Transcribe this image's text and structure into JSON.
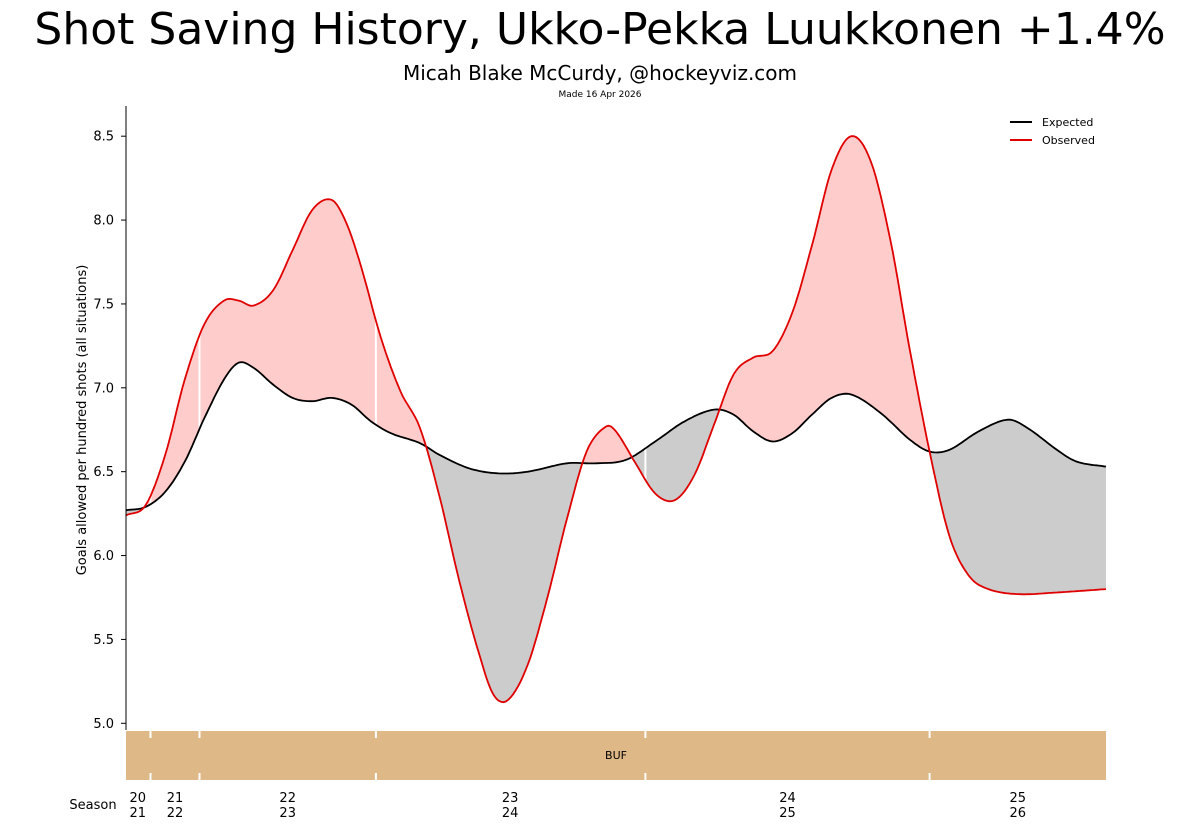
{
  "header": {
    "title": "Shot Saving History, Ukko-Pekka Luukkonen +1.4%",
    "subtitle": "Micah Blake McCurdy, @hockeyviz.com",
    "made": "Made 16 Apr 2026"
  },
  "colors": {
    "expected": "#000000",
    "observed": "#e00000",
    "above_fill": "#ffcccc",
    "below_fill": "#cccccc",
    "team_band": "#deb887"
  },
  "chart_data": {
    "type": "line",
    "ylabel": "Goals allowed per hundred shots (all situations)",
    "ylim": [
      4.96,
      8.68
    ],
    "yticks": [
      "5.0",
      "5.5",
      "6.0",
      "6.5",
      "7.0",
      "7.5",
      "8.0",
      "8.5"
    ],
    "xlim": [
      0,
      1
    ],
    "legend_position": "top-right",
    "series": [
      {
        "name": "Expected",
        "points": [
          [
            0.0,
            6.27
          ],
          [
            0.02,
            6.29
          ],
          [
            0.04,
            6.38
          ],
          [
            0.06,
            6.56
          ],
          [
            0.08,
            6.82
          ],
          [
            0.1,
            7.05
          ],
          [
            0.115,
            7.15
          ],
          [
            0.13,
            7.12
          ],
          [
            0.15,
            7.02
          ],
          [
            0.17,
            6.94
          ],
          [
            0.19,
            6.92
          ],
          [
            0.21,
            6.94
          ],
          [
            0.23,
            6.9
          ],
          [
            0.25,
            6.8
          ],
          [
            0.27,
            6.73
          ],
          [
            0.3,
            6.67
          ],
          [
            0.32,
            6.6
          ],
          [
            0.35,
            6.52
          ],
          [
            0.38,
            6.49
          ],
          [
            0.41,
            6.5
          ],
          [
            0.45,
            6.55
          ],
          [
            0.48,
            6.55
          ],
          [
            0.51,
            6.57
          ],
          [
            0.54,
            6.68
          ],
          [
            0.57,
            6.8
          ],
          [
            0.6,
            6.87
          ],
          [
            0.62,
            6.84
          ],
          [
            0.64,
            6.74
          ],
          [
            0.66,
            6.68
          ],
          [
            0.68,
            6.73
          ],
          [
            0.7,
            6.84
          ],
          [
            0.72,
            6.94
          ],
          [
            0.74,
            6.96
          ],
          [
            0.77,
            6.85
          ],
          [
            0.8,
            6.69
          ],
          [
            0.82,
            6.62
          ],
          [
            0.84,
            6.63
          ],
          [
            0.87,
            6.74
          ],
          [
            0.9,
            6.81
          ],
          [
            0.92,
            6.76
          ],
          [
            0.95,
            6.63
          ],
          [
            0.97,
            6.56
          ],
          [
            1.0,
            6.53
          ]
        ]
      },
      {
        "name": "Observed",
        "points": [
          [
            0.0,
            6.24
          ],
          [
            0.02,
            6.3
          ],
          [
            0.04,
            6.6
          ],
          [
            0.06,
            7.05
          ],
          [
            0.08,
            7.38
          ],
          [
            0.1,
            7.52
          ],
          [
            0.115,
            7.52
          ],
          [
            0.13,
            7.49
          ],
          [
            0.15,
            7.58
          ],
          [
            0.17,
            7.82
          ],
          [
            0.19,
            8.06
          ],
          [
            0.21,
            8.12
          ],
          [
            0.225,
            7.98
          ],
          [
            0.24,
            7.72
          ],
          [
            0.26,
            7.3
          ],
          [
            0.28,
            6.98
          ],
          [
            0.3,
            6.76
          ],
          [
            0.32,
            6.35
          ],
          [
            0.34,
            5.85
          ],
          [
            0.36,
            5.42
          ],
          [
            0.375,
            5.17
          ],
          [
            0.39,
            5.14
          ],
          [
            0.41,
            5.35
          ],
          [
            0.43,
            5.75
          ],
          [
            0.45,
            6.22
          ],
          [
            0.47,
            6.62
          ],
          [
            0.49,
            6.77
          ],
          [
            0.5,
            6.74
          ],
          [
            0.52,
            6.55
          ],
          [
            0.54,
            6.37
          ],
          [
            0.56,
            6.33
          ],
          [
            0.58,
            6.48
          ],
          [
            0.6,
            6.78
          ],
          [
            0.62,
            7.08
          ],
          [
            0.64,
            7.18
          ],
          [
            0.66,
            7.22
          ],
          [
            0.68,
            7.45
          ],
          [
            0.7,
            7.85
          ],
          [
            0.72,
            8.3
          ],
          [
            0.74,
            8.5
          ],
          [
            0.76,
            8.35
          ],
          [
            0.78,
            7.88
          ],
          [
            0.8,
            7.22
          ],
          [
            0.82,
            6.62
          ],
          [
            0.84,
            6.12
          ],
          [
            0.86,
            5.88
          ],
          [
            0.88,
            5.8
          ],
          [
            0.91,
            5.77
          ],
          [
            0.95,
            5.78
          ],
          [
            1.0,
            5.8
          ]
        ]
      }
    ],
    "team_band": {
      "team": "BUF",
      "season_boundaries": [
        0.0,
        0.025,
        0.075,
        0.255,
        0.53,
        0.82,
        1.0
      ]
    },
    "x_axis": {
      "label": "Season",
      "ticks": [
        {
          "pos": 0.012,
          "top": "20",
          "bottom": "21"
        },
        {
          "pos": 0.05,
          "top": "21",
          "bottom": "22"
        },
        {
          "pos": 0.165,
          "top": "22",
          "bottom": "23"
        },
        {
          "pos": 0.392,
          "top": "23",
          "bottom": "24"
        },
        {
          "pos": 0.675,
          "top": "24",
          "bottom": "25"
        },
        {
          "pos": 0.91,
          "top": "25",
          "bottom": "26"
        }
      ]
    }
  }
}
